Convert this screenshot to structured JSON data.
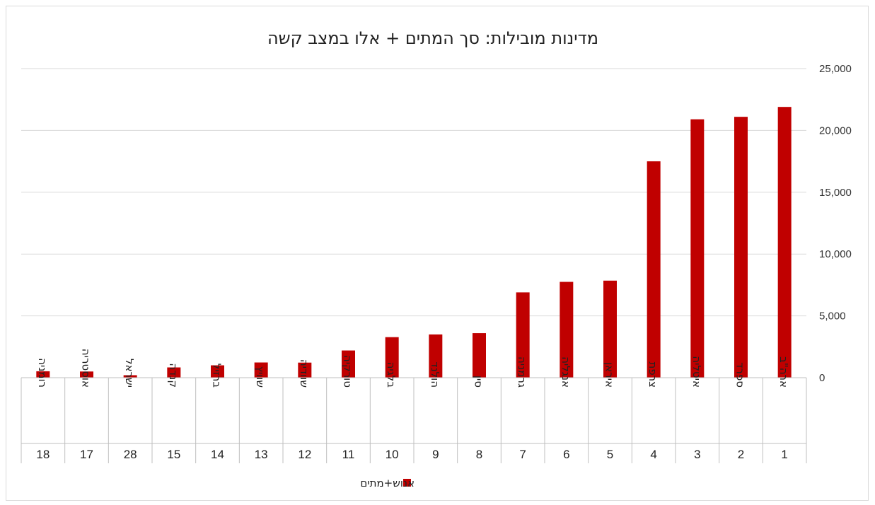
{
  "chart_data": {
    "type": "bar",
    "title": "מדינות מובילות: סך המתים + אלו במצב קשה",
    "categories": [
      "ארה\"ב",
      "ספרד",
      "איטליה",
      "צרפת",
      "איראן",
      "אנגליה",
      "גרמניה",
      "סין",
      "הולנד",
      "בלגיה",
      "טורקיה",
      "שוודיה",
      "שוויץ",
      "ברזיל",
      "קנדה",
      "ישראל",
      "אוסטריה",
      "רומניה"
    ],
    "ranks": [
      "1",
      "2",
      "3",
      "4",
      "5",
      "6",
      "7",
      "8",
      "9",
      "10",
      "11",
      "12",
      "13",
      "14",
      "15",
      "28",
      "17",
      "18"
    ],
    "series": [
      {
        "name": "אנוש+מתים",
        "color": "#c00000",
        "values": [
          21900,
          21100,
          20900,
          17500,
          7850,
          7750,
          6900,
          3600,
          3500,
          3280,
          2200,
          1220,
          1230,
          1000,
          830,
          200,
          500,
          520
        ]
      }
    ],
    "ylim": [
      0,
      25000
    ],
    "yticks": [
      "0",
      "5,000",
      "10,000",
      "15,000",
      "20,000",
      "25,000"
    ],
    "xlabel": "",
    "ylabel": "",
    "grid": true,
    "legend_position": "bottom",
    "category_order": "right-to-left"
  }
}
